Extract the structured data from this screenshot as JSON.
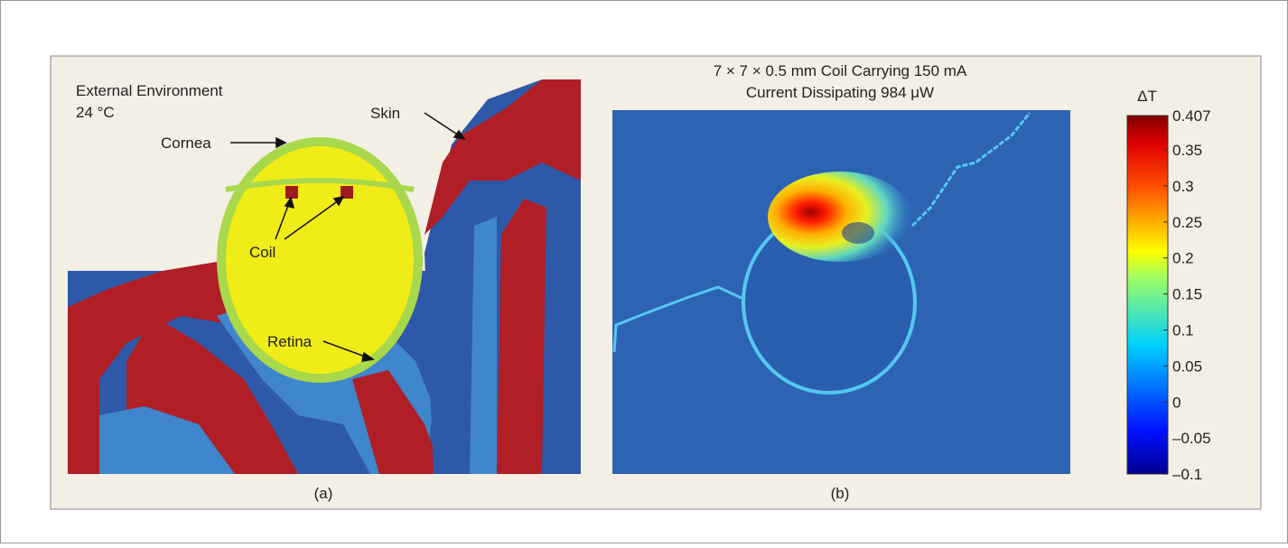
{
  "panel_a": {
    "environment": [
      "External Environment",
      "24 °C"
    ],
    "labels": {
      "skin": "Skin",
      "cornea": "Cornea",
      "coil": "Coil",
      "retina": "Retina"
    },
    "caption": "(a)"
  },
  "panel_b": {
    "title": [
      "7 × 7 × 0.5 mm Coil Carrying 150 mA",
      "Current Dissipating 984 μW"
    ],
    "caption": "(b)"
  },
  "colorbar": {
    "label": "ΔT",
    "ticks": [
      "0.407",
      "0.35",
      "0.3",
      "0.25",
      "0.2",
      "0.15",
      "0.1",
      "0.05",
      "0",
      "–0.05",
      "–0.1"
    ]
  }
}
